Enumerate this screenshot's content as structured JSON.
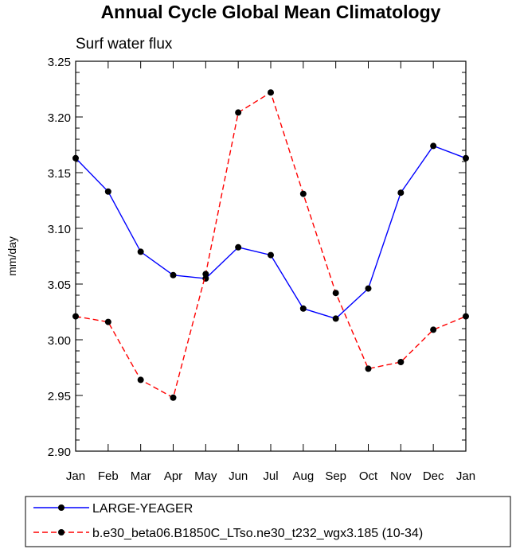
{
  "chart_data": {
    "type": "line",
    "title": "Annual Cycle Global Mean Climatology",
    "subtitle": "Surf water flux",
    "xlabel": "",
    "ylabel": "mm/day",
    "categories": [
      "Jan",
      "Feb",
      "Mar",
      "Apr",
      "May",
      "Jun",
      "Jul",
      "Aug",
      "Sep",
      "Oct",
      "Nov",
      "Dec",
      "Jan"
    ],
    "ylim": [
      2.9,
      3.25
    ],
    "yticks": [
      "2.90",
      "2.95",
      "3.00",
      "3.05",
      "3.10",
      "3.15",
      "3.20",
      "3.25"
    ],
    "grid": false,
    "legend_position": "bottom",
    "series": [
      {
        "name": "LARGE-YEAGER",
        "color": "#0000ff",
        "dash": "solid",
        "values": [
          3.163,
          3.133,
          3.079,
          3.058,
          3.055,
          3.083,
          3.076,
          3.028,
          3.019,
          3.046,
          3.132,
          3.174,
          3.163
        ]
      },
      {
        "name": "b.e30_beta06.B1850C_LTso.ne30_t232_wgx3.185 (10-34)",
        "color": "#ff0000",
        "dash": "dashed",
        "values": [
          3.021,
          3.016,
          2.964,
          2.948,
          3.059,
          3.204,
          3.222,
          3.131,
          3.042,
          2.974,
          2.98,
          3.009,
          3.021
        ]
      }
    ]
  }
}
